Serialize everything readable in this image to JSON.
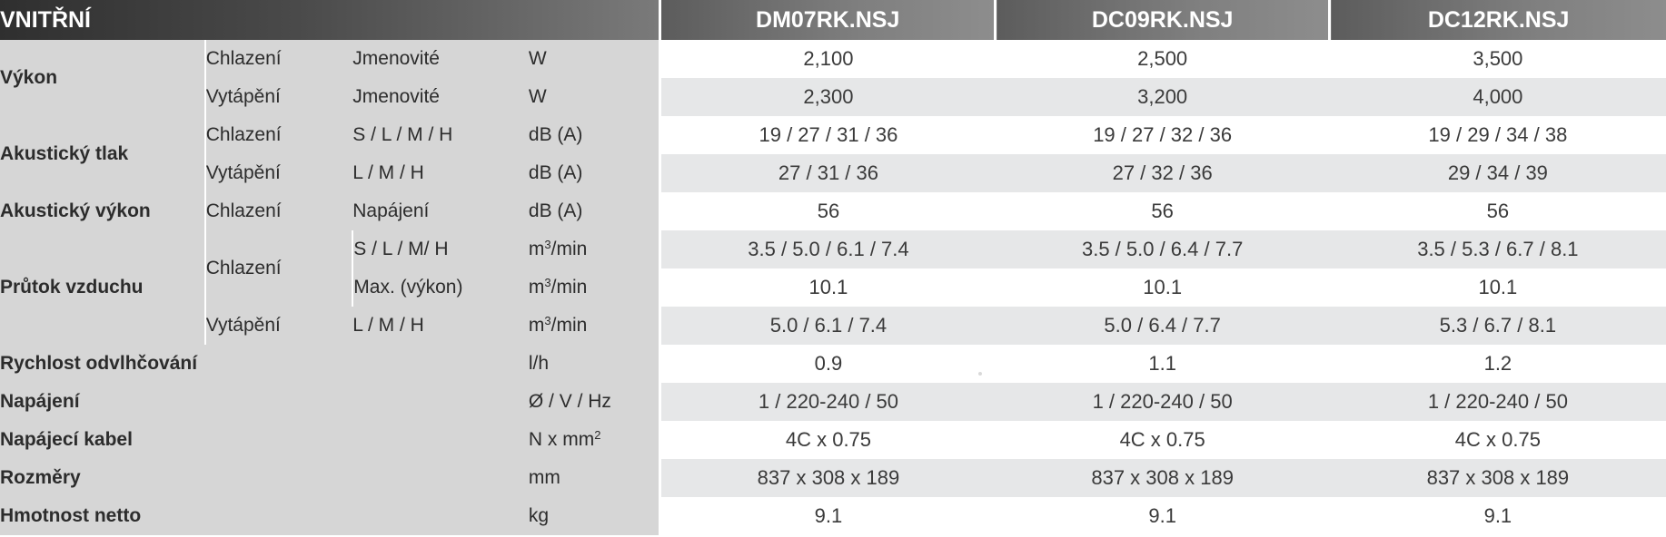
{
  "header": {
    "title": "VNITŘNÍ",
    "models": [
      "DM07RK.NSJ",
      "DC09RK.NSJ",
      "DC12RK.NSJ"
    ]
  },
  "rows": [
    {
      "param": "Výkon",
      "mode": "Chlazení",
      "sub": "Jmenovité",
      "unit": "W",
      "values": [
        "2,100",
        "2,500",
        "3,500"
      ]
    },
    {
      "param": "",
      "mode": "Vytápění",
      "sub": "Jmenovité",
      "unit": "W",
      "values": [
        "2,300",
        "3,200",
        "4,000"
      ]
    },
    {
      "param": "Akustický tlak",
      "mode": "Chlazení",
      "sub": "S / L / M / H",
      "unit": "dB (A)",
      "values": [
        "19 / 27 / 31 / 36",
        "19 / 27 / 32 / 36",
        "19 / 29 / 34 / 38"
      ]
    },
    {
      "param": "",
      "mode": "Vytápění",
      "sub": "L / M / H",
      "unit": "dB (A)",
      "values": [
        "27 / 31 / 36",
        "27 / 32 / 36",
        "29 / 34 / 39"
      ]
    },
    {
      "param": "Akustický výkon",
      "mode": "Chlazení",
      "sub": "Napájení",
      "unit": "dB (A)",
      "values": [
        "56",
        "56",
        "56"
      ]
    },
    {
      "param": "Průtok vzduchu",
      "mode": "Chlazení",
      "sub": "S / L / M/ H",
      "unit_base": "m",
      "unit_sup": "3",
      "unit_tail": "/min",
      "values": [
        "3.5 / 5.0 / 6.1 / 7.4",
        "3.5 / 5.0 / 6.4 / 7.7",
        "3.5 / 5.3 / 6.7 / 8.1"
      ]
    },
    {
      "param": "",
      "mode": "",
      "sub": "Max. (výkon)",
      "unit_base": "m",
      "unit_sup": "3",
      "unit_tail": "/min",
      "values": [
        "10.1",
        "10.1",
        "10.1"
      ]
    },
    {
      "param": "",
      "mode": "Vytápění",
      "sub": "L / M / H",
      "unit_base": "m",
      "unit_sup": "3",
      "unit_tail": "/min",
      "values": [
        "5.0 / 6.1 / 7.4",
        "5.0 / 6.4 / 7.7",
        "5.3 / 6.7 / 8.1"
      ]
    },
    {
      "param": "Rychlost odvlhčování",
      "unit": "l/h",
      "values": [
        "0.9",
        "1.1",
        "1.2"
      ]
    },
    {
      "param": "Napájení",
      "unit": "Ø / V / Hz",
      "values": [
        "1 / 220-240 / 50",
        "1 / 220-240 / 50",
        "1 / 220-240 / 50"
      ]
    },
    {
      "param": "Napájecí kabel",
      "unit_base": "N x mm",
      "unit_sup": "2",
      "unit_tail": "",
      "values": [
        "4C x 0.75",
        "4C x 0.75",
        "4C x 0.75"
      ]
    },
    {
      "param": "Rozměry",
      "unit": "mm",
      "values": [
        "837 x 308 x 189",
        "837 x 308 x 189",
        "837 x 308 x 189"
      ]
    },
    {
      "param": "Hmotnost netto",
      "unit": "kg",
      "values": [
        "9.1",
        "9.1",
        "9.1"
      ]
    }
  ]
}
